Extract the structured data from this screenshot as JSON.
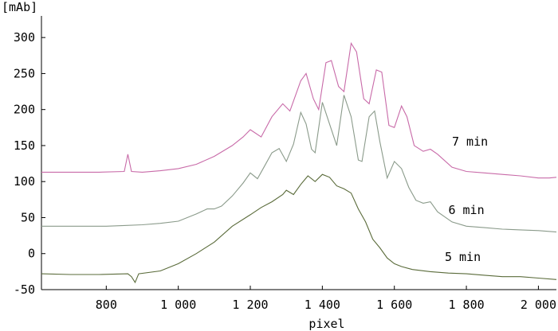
{
  "chart_data": {
    "type": "line",
    "title": "",
    "xlabel": "pixel",
    "ylabel": "",
    "yunit": "[mAb]",
    "xlim": [
      620,
      2050
    ],
    "ylim": [
      -50,
      330
    ],
    "xticks": [
      800,
      1000,
      1200,
      1400,
      1600,
      1800,
      2000
    ],
    "xtick_labels": [
      "800",
      "1 000",
      "1 200",
      "1 400",
      "1 600",
      "1 800",
      "2 000"
    ],
    "yticks": [
      -50,
      0,
      50,
      100,
      150,
      200,
      250,
      300
    ],
    "ytick_labels": [
      "-50",
      "0",
      "50",
      "100",
      "150",
      "200",
      "250",
      "300"
    ],
    "grid": false,
    "legend": "none",
    "series": [
      {
        "label": "5 min",
        "label_at": [
          1740,
          -10
        ],
        "color": "#5a6b3a",
        "points": [
          [
            620,
            -28
          ],
          [
            700,
            -29
          ],
          [
            780,
            -29
          ],
          [
            860,
            -28
          ],
          [
            870,
            -32
          ],
          [
            880,
            -40
          ],
          [
            890,
            -28
          ],
          [
            950,
            -24
          ],
          [
            1000,
            -14
          ],
          [
            1050,
            0
          ],
          [
            1100,
            16
          ],
          [
            1150,
            38
          ],
          [
            1200,
            54
          ],
          [
            1230,
            64
          ],
          [
            1260,
            72
          ],
          [
            1290,
            82
          ],
          [
            1300,
            88
          ],
          [
            1320,
            82
          ],
          [
            1340,
            96
          ],
          [
            1360,
            108
          ],
          [
            1380,
            100
          ],
          [
            1400,
            110
          ],
          [
            1420,
            106
          ],
          [
            1440,
            94
          ],
          [
            1460,
            90
          ],
          [
            1480,
            84
          ],
          [
            1500,
            62
          ],
          [
            1520,
            44
          ],
          [
            1540,
            20
          ],
          [
            1560,
            8
          ],
          [
            1580,
            -6
          ],
          [
            1600,
            -14
          ],
          [
            1620,
            -18
          ],
          [
            1650,
            -22
          ],
          [
            1700,
            -25
          ],
          [
            1750,
            -27
          ],
          [
            1800,
            -28
          ],
          [
            1850,
            -30
          ],
          [
            1900,
            -32
          ],
          [
            1950,
            -32
          ],
          [
            2000,
            -34
          ],
          [
            2050,
            -36
          ]
        ]
      },
      {
        "label": "6 min",
        "label_at": [
          1750,
          55
        ],
        "color": "#8a9a8a",
        "points": [
          [
            620,
            38
          ],
          [
            700,
            38
          ],
          [
            800,
            38
          ],
          [
            850,
            39
          ],
          [
            900,
            40
          ],
          [
            950,
            42
          ],
          [
            1000,
            45
          ],
          [
            1050,
            55
          ],
          [
            1080,
            62
          ],
          [
            1100,
            62
          ],
          [
            1120,
            66
          ],
          [
            1150,
            80
          ],
          [
            1180,
            98
          ],
          [
            1200,
            112
          ],
          [
            1220,
            104
          ],
          [
            1240,
            122
          ],
          [
            1260,
            140
          ],
          [
            1280,
            146
          ],
          [
            1300,
            128
          ],
          [
            1320,
            152
          ],
          [
            1340,
            196
          ],
          [
            1355,
            180
          ],
          [
            1370,
            145
          ],
          [
            1380,
            140
          ],
          [
            1400,
            210
          ],
          [
            1420,
            180
          ],
          [
            1440,
            150
          ],
          [
            1460,
            220
          ],
          [
            1480,
            190
          ],
          [
            1500,
            130
          ],
          [
            1510,
            128
          ],
          [
            1530,
            190
          ],
          [
            1545,
            198
          ],
          [
            1560,
            155
          ],
          [
            1580,
            105
          ],
          [
            1600,
            128
          ],
          [
            1620,
            118
          ],
          [
            1640,
            92
          ],
          [
            1660,
            74
          ],
          [
            1680,
            70
          ],
          [
            1700,
            72
          ],
          [
            1720,
            58
          ],
          [
            1760,
            44
          ],
          [
            1800,
            38
          ],
          [
            1850,
            36
          ],
          [
            1900,
            34
          ],
          [
            1950,
            33
          ],
          [
            2000,
            32
          ],
          [
            2050,
            30
          ]
        ]
      },
      {
        "label": "7 min",
        "label_at": [
          1760,
          150
        ],
        "color": "#c86aa8",
        "points": [
          [
            620,
            113
          ],
          [
            700,
            113
          ],
          [
            780,
            113
          ],
          [
            850,
            114
          ],
          [
            860,
            138
          ],
          [
            870,
            114
          ],
          [
            900,
            113
          ],
          [
            950,
            115
          ],
          [
            1000,
            118
          ],
          [
            1050,
            124
          ],
          [
            1100,
            135
          ],
          [
            1150,
            150
          ],
          [
            1180,
            162
          ],
          [
            1200,
            172
          ],
          [
            1230,
            162
          ],
          [
            1260,
            190
          ],
          [
            1290,
            208
          ],
          [
            1310,
            198
          ],
          [
            1340,
            240
          ],
          [
            1355,
            250
          ],
          [
            1375,
            215
          ],
          [
            1390,
            200
          ],
          [
            1410,
            265
          ],
          [
            1425,
            268
          ],
          [
            1445,
            232
          ],
          [
            1460,
            225
          ],
          [
            1480,
            292
          ],
          [
            1495,
            280
          ],
          [
            1515,
            215
          ],
          [
            1530,
            208
          ],
          [
            1550,
            255
          ],
          [
            1565,
            252
          ],
          [
            1585,
            178
          ],
          [
            1600,
            175
          ],
          [
            1620,
            205
          ],
          [
            1635,
            190
          ],
          [
            1655,
            150
          ],
          [
            1680,
            142
          ],
          [
            1700,
            145
          ],
          [
            1720,
            138
          ],
          [
            1760,
            120
          ],
          [
            1800,
            114
          ],
          [
            1850,
            112
          ],
          [
            1900,
            110
          ],
          [
            1950,
            108
          ],
          [
            2000,
            105
          ],
          [
            2030,
            105
          ],
          [
            2050,
            106
          ]
        ]
      }
    ]
  }
}
